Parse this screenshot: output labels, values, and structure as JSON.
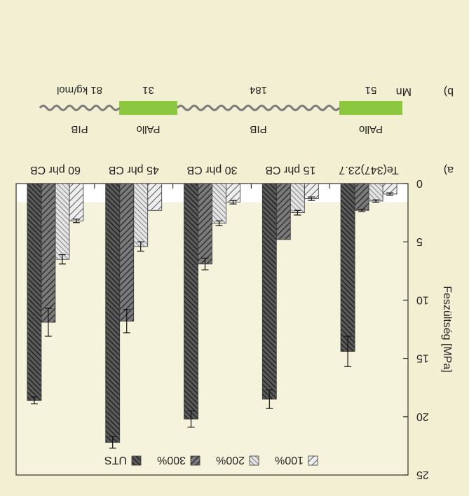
{
  "panel_b": {
    "label": "b)",
    "mn_label": "Mn",
    "segments": [
      {
        "name": "PAllo",
        "mn": "51",
        "kind": "block"
      },
      {
        "name": "PIB",
        "mn": "184",
        "kind": "chain"
      },
      {
        "name": "PAllo",
        "mn": "31",
        "kind": "block"
      },
      {
        "name": "PIB",
        "mn": "81 kg/mol",
        "kind": "chain"
      }
    ],
    "colors": {
      "block": "#8dc63f",
      "chain": "#7a7a7a"
    }
  },
  "panel_a": {
    "label": "a)"
  },
  "chart_data": {
    "type": "bar",
    "categories": [
      "Te(347)23.7",
      "15 phr CB",
      "30 phr CB",
      "45 phr CB",
      "60 phr CB"
    ],
    "series": [
      {
        "name": "100%",
        "values": [
          0.9,
          1.3,
          1.6,
          2.3,
          3.2
        ],
        "errors": [
          0.1,
          0.15,
          0.15,
          0.0,
          0.15
        ]
      },
      {
        "name": "200%",
        "values": [
          1.5,
          2.5,
          3.4,
          5.4,
          6.5
        ],
        "errors": [
          0.1,
          0.2,
          0.2,
          0.4,
          0.4
        ]
      },
      {
        "name": "300%",
        "values": [
          2.3,
          4.8,
          6.9,
          11.8,
          11.9
        ],
        "errors": [
          0.1,
          0.0,
          0.5,
          1.0,
          1.2
        ]
      },
      {
        "name": "UTS",
        "values": [
          14.4,
          18.5,
          20.2,
          22.2,
          18.6
        ],
        "errors": [
          1.3,
          0.8,
          0.7,
          0.5,
          0.3
        ]
      }
    ],
    "ylabel": "Feszültség [MPa]",
    "ylim": [
      0,
      25
    ],
    "yticks": [
      "0",
      "5",
      "10",
      "15",
      "20",
      "25"
    ],
    "legend_position": "bottom",
    "grid": false
  }
}
